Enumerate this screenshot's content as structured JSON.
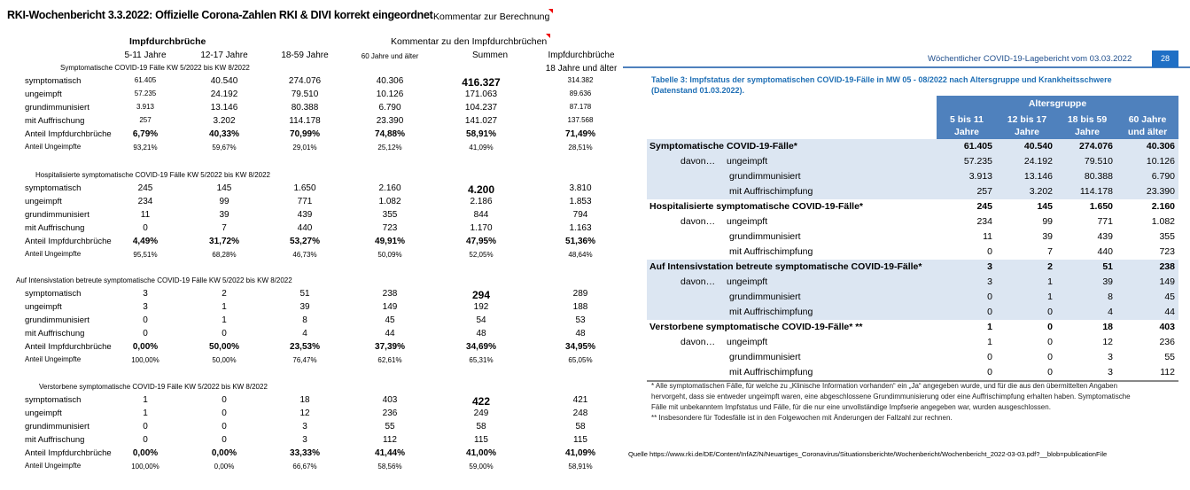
{
  "title": "RKI-Wochenbericht 3.3.2022: Offizielle Corona-Zahlen RKI & DIVI korrekt eingeordnet",
  "comment_calc": "Kommentar zur Berechnung",
  "section_heading": "Impfdurchbrüche",
  "comment_breakthrough": "Kommentar zu den Impfdurchbrüchen",
  "columns": [
    "5-11 Jahre",
    "12-17 Jahre",
    "18-59 Jahre",
    "60 Jahre und älter",
    "Summen",
    "Impfdurchbrüche"
  ],
  "column6_sub": "18 Jahre und älter",
  "row_labels": [
    "symptomatisch",
    "ungeimpft",
    "grundimmunisiert",
    "mit Auffrischung",
    "Anteil Impfdurchbrüche",
    "Anteil Ungeimpfte"
  ],
  "blocks": [
    {
      "title": "Symptomatische COVID-19 Fälle KW 5/2022 bis KW 8/2022",
      "rows": [
        [
          "61.405",
          "40.540",
          "274.076",
          "40.306",
          "416.327",
          "314.382"
        ],
        [
          "57.235",
          "24.192",
          "79.510",
          "10.126",
          "171.063",
          "89.636"
        ],
        [
          "3.913",
          "13.146",
          "80.388",
          "6.790",
          "104.237",
          "87.178"
        ],
        [
          "257",
          "3.202",
          "114.178",
          "23.390",
          "141.027",
          "137.568"
        ],
        [
          "6,79%",
          "40,33%",
          "70,99%",
          "74,88%",
          "58,91%",
          "71,49%"
        ],
        [
          "93,21%",
          "59,67%",
          "29,01%",
          "25,12%",
          "41,09%",
          "28,51%"
        ]
      ]
    },
    {
      "title": "Hospitalisierte symptomatische COVID-19 Fälle KW 5/2022 bis KW 8/2022",
      "rows": [
        [
          "245",
          "145",
          "1.650",
          "2.160",
          "4.200",
          "3.810"
        ],
        [
          "234",
          "99",
          "771",
          "1.082",
          "2.186",
          "1.853"
        ],
        [
          "11",
          "39",
          "439",
          "355",
          "844",
          "794"
        ],
        [
          "0",
          "7",
          "440",
          "723",
          "1.170",
          "1.163"
        ],
        [
          "4,49%",
          "31,72%",
          "53,27%",
          "49,91%",
          "47,95%",
          "51,36%"
        ],
        [
          "95,51%",
          "68,28%",
          "46,73%",
          "50,09%",
          "52,05%",
          "48,64%"
        ]
      ]
    },
    {
      "title": "Auf Intensivstation betreute symptomatische COVID-19 Fälle KW 5/2022 bis KW 8/2022",
      "rows": [
        [
          "3",
          "2",
          "51",
          "238",
          "294",
          "289"
        ],
        [
          "3",
          "1",
          "39",
          "149",
          "192",
          "188"
        ],
        [
          "0",
          "1",
          "8",
          "45",
          "54",
          "53"
        ],
        [
          "0",
          "0",
          "4",
          "44",
          "48",
          "48"
        ],
        [
          "0,00%",
          "50,00%",
          "23,53%",
          "37,39%",
          "34,69%",
          "34,95%"
        ],
        [
          "100,00%",
          "50,00%",
          "76,47%",
          "62,61%",
          "65,31%",
          "65,05%"
        ]
      ]
    },
    {
      "title": "Verstorbene  symptomatische COVID-19 Fälle KW 5/2022 bis KW 8/2022",
      "rows": [
        [
          "1",
          "0",
          "18",
          "403",
          "422",
          "421"
        ],
        [
          "1",
          "0",
          "12",
          "236",
          "249",
          "248"
        ],
        [
          "0",
          "0",
          "3",
          "55",
          "58",
          "58"
        ],
        [
          "0",
          "0",
          "3",
          "112",
          "115",
          "115"
        ],
        [
          "0,00%",
          "0,00%",
          "33,33%",
          "41,44%",
          "41,00%",
          "41,09%"
        ],
        [
          "100,00%",
          "0,00%",
          "66,67%",
          "58,56%",
          "59,00%",
          "58,91%"
        ]
      ]
    }
  ],
  "report": {
    "header": "Wöchentlicher COVID-19-Lagebericht vom 03.03.2022",
    "page": "28",
    "caption": "Tabelle 3: Impfstatus der symptomatischen COVID-19-Fälle in MW 05 - 08/2022 nach Altersgruppe und Krankheitsschwere (Datenstand 01.03.2022).",
    "group_header": "Altersgruppe",
    "age_cols": [
      [
        "5 bis 11",
        "Jahre"
      ],
      [
        "12 bis 17",
        "Jahre"
      ],
      [
        "18 bis 59",
        "Jahre"
      ],
      [
        "60 Jahre",
        "und älter"
      ]
    ],
    "davon": "davon…",
    "sub_labels": [
      "ungeimpft",
      "grundimmunisiert",
      "mit Auffrischimpfung"
    ],
    "groups": [
      {
        "title": "Symptomatische COVID-19-Fälle*",
        "shaded": true,
        "rows": [
          [
            "61.405",
            "40.540",
            "274.076",
            "40.306"
          ],
          [
            "57.235",
            "24.192",
            "79.510",
            "10.126"
          ],
          [
            "3.913",
            "13.146",
            "80.388",
            "6.790"
          ],
          [
            "257",
            "3.202",
            "114.178",
            "23.390"
          ]
        ]
      },
      {
        "title": "Hospitalisierte symptomatische COVID-19-Fälle*",
        "shaded": false,
        "rows": [
          [
            "245",
            "145",
            "1.650",
            "2.160"
          ],
          [
            "234",
            "99",
            "771",
            "1.082"
          ],
          [
            "11",
            "39",
            "439",
            "355"
          ],
          [
            "0",
            "7",
            "440",
            "723"
          ]
        ]
      },
      {
        "title": "Auf Intensivstation betreute symptomatische COVID-19-Fälle*",
        "shaded": true,
        "rows": [
          [
            "3",
            "2",
            "51",
            "238"
          ],
          [
            "3",
            "1",
            "39",
            "149"
          ],
          [
            "0",
            "1",
            "8",
            "45"
          ],
          [
            "0",
            "0",
            "4",
            "44"
          ]
        ]
      },
      {
        "title": "Verstorbene symptomatische COVID-19-Fälle* **",
        "shaded": false,
        "rows": [
          [
            "1",
            "0",
            "18",
            "403"
          ],
          [
            "1",
            "0",
            "12",
            "236"
          ],
          [
            "0",
            "0",
            "3",
            "55"
          ],
          [
            "0",
            "0",
            "3",
            "112"
          ]
        ]
      }
    ],
    "footnote1": "* Alle symptomatischen Fälle, für welche zu „Klinische Information vorhanden“ ein „Ja“ angegeben wurde, und für die aus den übermittelten Angaben hervorgeht, dass sie entweder ungeimpft waren, eine abgeschlossene Grundimmunisierung oder eine Auffrischimpfung erhalten haben. Symptomatische Fälle mit unbekanntem Impfstatus und Fälle, für die nur eine unvollständige Impfserie angegeben war, wurden ausgeschlossen.",
    "footnote2": "** Insbesondere für Todesfälle ist in den Folgewochen mit Änderungen der Fallzahl zur rechnen.",
    "accent": "#4f81bd",
    "shade": "#dce6f2"
  },
  "source": "Quelle https://www.rki.de/DE/Content/InfAZ/N/Neuartiges_Coronavirus/Situationsberichte/Wochenbericht/Wochenbericht_2022-03-03.pdf?__blob=publicationFile"
}
